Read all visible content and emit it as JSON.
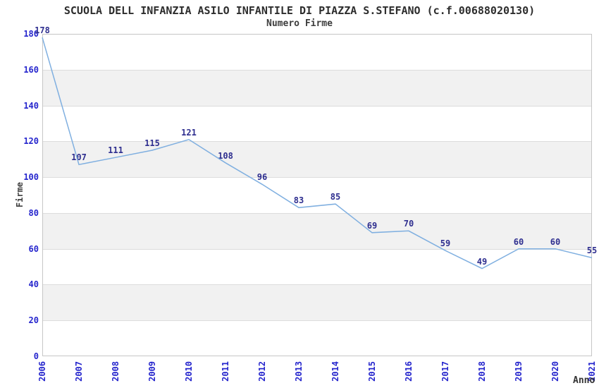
{
  "chart_data": {
    "type": "line",
    "title": "SCUOLA DELL INFANZIA ASILO INFANTILE DI PIAZZA S.STEFANO (c.f.00688020130)",
    "subtitle": "Numero Firme",
    "xlabel": "Anno",
    "ylabel": "Firme",
    "categories": [
      "2006",
      "2007",
      "2008",
      "2009",
      "2010",
      "2011",
      "2012",
      "2013",
      "2014",
      "2015",
      "2016",
      "2017",
      "2018",
      "2019",
      "2020",
      "2021"
    ],
    "values": [
      178,
      107,
      111,
      115,
      121,
      108,
      96,
      83,
      85,
      69,
      70,
      59,
      49,
      60,
      60,
      55
    ],
    "ylim": [
      0,
      180
    ],
    "ytick_step": 20,
    "yticks": [
      0,
      20,
      40,
      60,
      80,
      100,
      120,
      140,
      160,
      180
    ],
    "grid": "horizontal-with-alternating-bands",
    "legend": "none",
    "data_labels_visible": true,
    "colors": {
      "line": "#7fafe0",
      "tick_label": "#2525cd",
      "data_label": "#2e2e8f",
      "band": "#f1f1f1",
      "grid_line": "#dcdcdc",
      "plot_border": "#c6c6c6",
      "title": "#2d2d2d",
      "subtitle": "#3d3d3d",
      "axis_title": "#3f3f3f"
    }
  }
}
